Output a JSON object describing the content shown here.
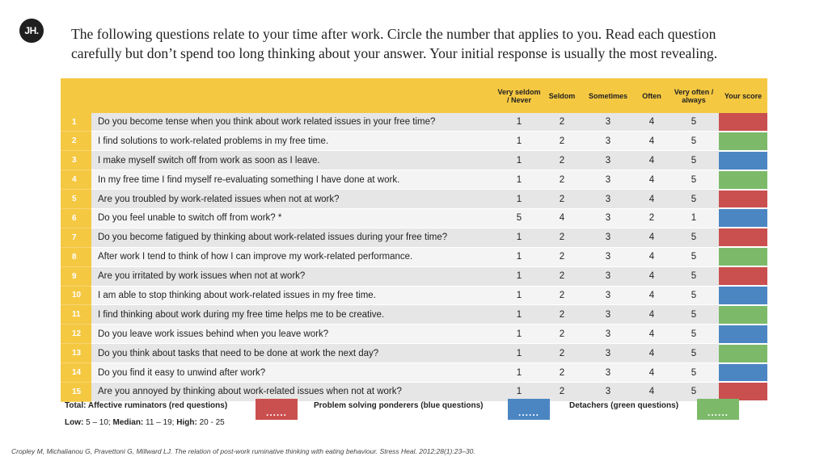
{
  "logo": "JH.",
  "intro": [
    "The following questions relate to your time after work. Circle the number that applies to you. Read each question",
    "carefully but don’t spend too long thinking about your answer. Your initial response is usually the most revealing."
  ],
  "headers": {
    "very_seldom": "Very seldom / Never",
    "seldom": "Seldom",
    "sometimes": "Sometimes",
    "often": "Often",
    "very_often": "Very often / always",
    "score": "Your score"
  },
  "questions": [
    {
      "n": "1",
      "text": "Do you become tense when you think about work related issues in your free time?",
      "opts": [
        "1",
        "2",
        "3",
        "4",
        "5"
      ],
      "color": "red"
    },
    {
      "n": "2",
      "text": "I find solutions to work-related problems in my free time.",
      "opts": [
        "1",
        "2",
        "3",
        "4",
        "5"
      ],
      "color": "green"
    },
    {
      "n": "3",
      "text": "I make myself switch off from work as soon as I leave.",
      "opts": [
        "1",
        "2",
        "3",
        "4",
        "5"
      ],
      "color": "blue"
    },
    {
      "n": "4",
      "text": "In my free time I find myself re-evaluating something I have done at work.",
      "opts": [
        "1",
        "2",
        "3",
        "4",
        "5"
      ],
      "color": "green"
    },
    {
      "n": "5",
      "text": "Are you troubled by work-related issues when not at work?",
      "opts": [
        "1",
        "2",
        "3",
        "4",
        "5"
      ],
      "color": "red"
    },
    {
      "n": "6",
      "text": "Do you feel unable to switch off from work? *",
      "opts": [
        "5",
        "4",
        "3",
        "2",
        "1"
      ],
      "color": "blue"
    },
    {
      "n": "7",
      "text": "Do you become fatigued by thinking about work-related issues during your free time?",
      "opts": [
        "1",
        "2",
        "3",
        "4",
        "5"
      ],
      "color": "red"
    },
    {
      "n": "8",
      "text": "After work I tend to think of how I can improve my work-related performance.",
      "opts": [
        "1",
        "2",
        "3",
        "4",
        "5"
      ],
      "color": "green"
    },
    {
      "n": "9",
      "text": "Are you irritated by work issues when not at work?",
      "opts": [
        "1",
        "2",
        "3",
        "4",
        "5"
      ],
      "color": "red"
    },
    {
      "n": "10",
      "text": "I am able to stop thinking about work-related issues in my free time.",
      "opts": [
        "1",
        "2",
        "3",
        "4",
        "5"
      ],
      "color": "blue"
    },
    {
      "n": "11",
      "text": "I find thinking about work during my free time helps me to be creative.",
      "opts": [
        "1",
        "2",
        "3",
        "4",
        "5"
      ],
      "color": "green"
    },
    {
      "n": "12",
      "text": "Do you leave work issues behind when you leave work?",
      "opts": [
        "1",
        "2",
        "3",
        "4",
        "5"
      ],
      "color": "blue"
    },
    {
      "n": "13",
      "text": "Do you think about tasks that need to be done at work the next day?",
      "opts": [
        "1",
        "2",
        "3",
        "4",
        "5"
      ],
      "color": "green"
    },
    {
      "n": "14",
      "text": "Do you find it easy to unwind after work?",
      "opts": [
        "1",
        "2",
        "3",
        "4",
        "5"
      ],
      "color": "blue"
    },
    {
      "n": "15",
      "text": "Are you annoyed by thinking about work-related issues when not at work?",
      "opts": [
        "1",
        "2",
        "3",
        "4",
        "5"
      ],
      "color": "red"
    }
  ],
  "colors": {
    "red": "#c9504f",
    "blue": "#4b86c3",
    "green": "#7cba6a",
    "header": "#f5c842"
  },
  "totals": {
    "label": "Total:",
    "red": "Affective ruminators (red questions)",
    "blue": "Problem solving ponderers (blue questions)",
    "green": "Detachers (green questions)",
    "placeholder": "......"
  },
  "ranges": {
    "low_label": "Low:",
    "low": "5 – 10;",
    "median_label": "Median:",
    "median": "11 – 19;",
    "high_label": "High:",
    "high": "20 - 25"
  },
  "citation": "Cropley M, Michalianou G, Pravettoni G, Millward LJ. The relation of post-work ruminative thinking with eating behaviour. Stress Heal. 2012;28(1):23–30."
}
